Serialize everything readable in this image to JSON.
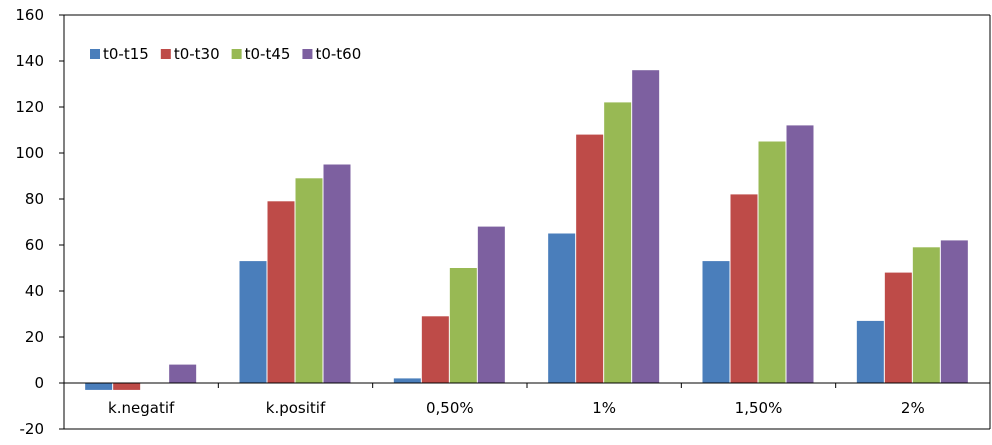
{
  "chart_data": {
    "type": "bar",
    "title": "",
    "xlabel": "",
    "ylabel": "",
    "categories": [
      "k.negatif",
      "k.positif",
      "0,50%",
      "1%",
      "1,50%",
      "2%"
    ],
    "series": [
      {
        "name": "t0-t15",
        "color": "#4a7ebb",
        "values": [
          -3,
          53,
          2,
          65,
          53,
          27
        ]
      },
      {
        "name": "t0-t30",
        "color": "#be4b48",
        "values": [
          -3,
          79,
          29,
          108,
          82,
          48
        ]
      },
      {
        "name": "t0-t45",
        "color": "#98b954",
        "values": [
          0,
          89,
          50,
          122,
          105,
          59
        ]
      },
      {
        "name": "t0-t60",
        "color": "#7d60a0",
        "values": [
          8,
          95,
          68,
          136,
          112,
          62
        ]
      }
    ],
    "ylim": [
      -20,
      160
    ],
    "yticks": [
      -20,
      0,
      20,
      40,
      60,
      80,
      100,
      120,
      140,
      160
    ],
    "grid": false,
    "legend_position": "top-left"
  }
}
